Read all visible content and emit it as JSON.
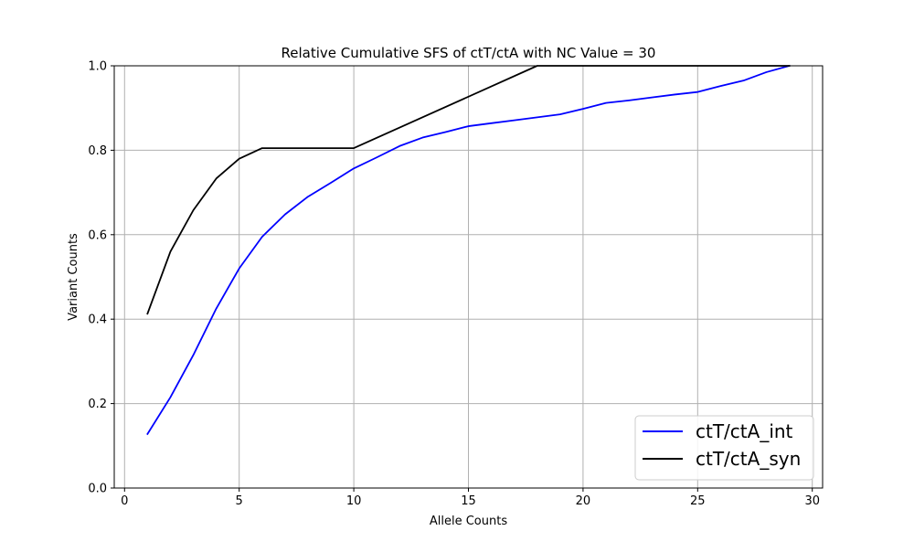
{
  "chart_data": {
    "type": "line",
    "title": "Relative Cumulative SFS of ctT/ctA with NC Value = 30",
    "xlabel": "Allele Counts",
    "ylabel": "Variant Counts",
    "xlim": [
      -0.45,
      30.45
    ],
    "ylim": [
      0.0,
      1.0
    ],
    "xticks": [
      0,
      5,
      10,
      15,
      20,
      25,
      30
    ],
    "xtick_labels": [
      "0",
      "5",
      "10",
      "15",
      "20",
      "25",
      "30"
    ],
    "yticks": [
      0.0,
      0.2,
      0.4,
      0.6,
      0.8,
      1.0
    ],
    "ytick_labels": [
      "0.0",
      "0.2",
      "0.4",
      "0.6",
      "0.8",
      "1.0"
    ],
    "grid": true,
    "legend_position": "lower right",
    "series": [
      {
        "name": "ctT/ctA_int",
        "color": "#0000ff",
        "x": [
          1,
          2,
          3,
          4,
          5,
          6,
          7,
          8,
          9,
          10,
          11,
          12,
          13,
          14,
          15,
          16,
          17,
          18,
          19,
          20,
          21,
          22,
          23,
          24,
          25,
          26,
          27,
          28,
          29
        ],
        "y": [
          0.128,
          0.215,
          0.315,
          0.425,
          0.52,
          0.595,
          0.648,
          0.69,
          0.723,
          0.757,
          0.783,
          0.81,
          0.83,
          0.843,
          0.857,
          0.864,
          0.871,
          0.878,
          0.885,
          0.898,
          0.912,
          0.918,
          0.925,
          0.932,
          0.938,
          0.952,
          0.965,
          0.985,
          1.0
        ]
      },
      {
        "name": "ctT/ctA_syn",
        "color": "#000000",
        "x": [
          1,
          2,
          3,
          4,
          5,
          6,
          7,
          8,
          9,
          10,
          18,
          29
        ],
        "y": [
          0.413,
          0.56,
          0.658,
          0.733,
          0.78,
          0.805,
          0.805,
          0.805,
          0.805,
          0.805,
          1.0,
          1.0
        ]
      }
    ]
  }
}
